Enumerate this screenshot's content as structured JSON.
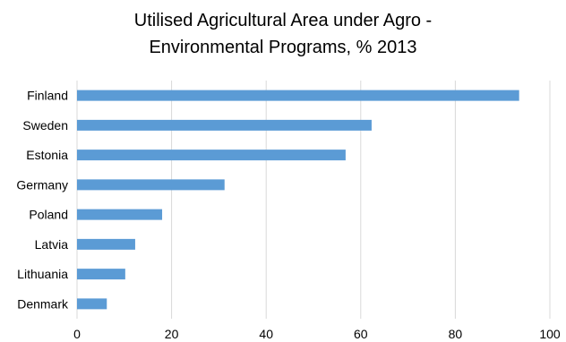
{
  "chart_data": {
    "type": "bar",
    "orientation": "horizontal",
    "title_lines": [
      "Utilised Agricultural Area under Agro  -",
      "Environmental Programs, % 2013"
    ],
    "categories": [
      "Finland",
      "Sweden",
      "Estonia",
      "Germany",
      "Poland",
      "Latvia",
      "Lithuania",
      "Denmark"
    ],
    "values": [
      93.5,
      62.3,
      56.8,
      31.2,
      18.0,
      12.3,
      10.2,
      6.3
    ],
    "xlim": [
      0,
      100
    ],
    "xticks": [
      0,
      20,
      40,
      60,
      80,
      100
    ],
    "grid": true,
    "legend": "none",
    "bar_color": "#5B9BD5",
    "grid_color": "#D9D9D9"
  }
}
